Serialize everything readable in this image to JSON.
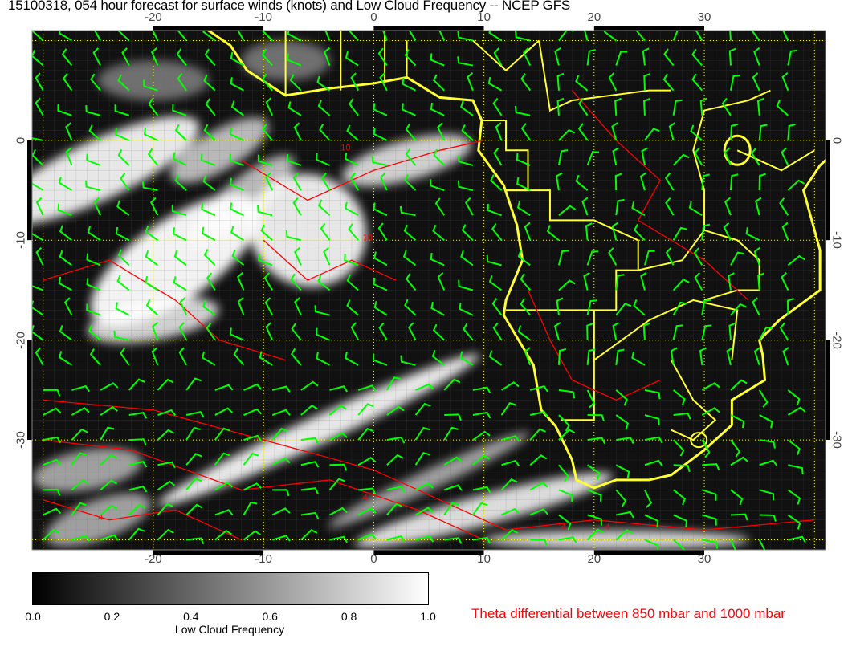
{
  "title": "15100318, 054 hour forecast for surface winds (knots) and Low Cloud Frequency -- NCEP GFS",
  "map": {
    "lon_range": [
      -31,
      41
    ],
    "lat_range": [
      11,
      -41
    ],
    "lon_ticks": [
      "-20",
      "-10",
      "0",
      "10",
      "20",
      "30"
    ],
    "lon_tick_values": [
      -20,
      -10,
      0,
      10,
      20,
      30
    ],
    "lat_ticks": [
      "0",
      "-10",
      "-20",
      "-30"
    ],
    "lat_tick_values": [
      0,
      -10,
      -20,
      -30
    ],
    "coastline_color": "#ffff33",
    "wind_barb_color": "#00ff00",
    "contour_color": "#ff0000",
    "gridline_color": "#ffff00",
    "contour_labels": [
      "4",
      "4",
      "4",
      "4",
      "10",
      "10"
    ]
  },
  "colorbar": {
    "label": "Low Cloud Frequency",
    "ticks": [
      "0.0",
      "0.2",
      "0.4",
      "0.6",
      "0.8",
      "1.0"
    ],
    "range": [
      0,
      1
    ],
    "colors": [
      "#000000",
      "#ffffff"
    ]
  },
  "contour_legend": "Theta differential between 850 mbar and 1000 mbar"
}
